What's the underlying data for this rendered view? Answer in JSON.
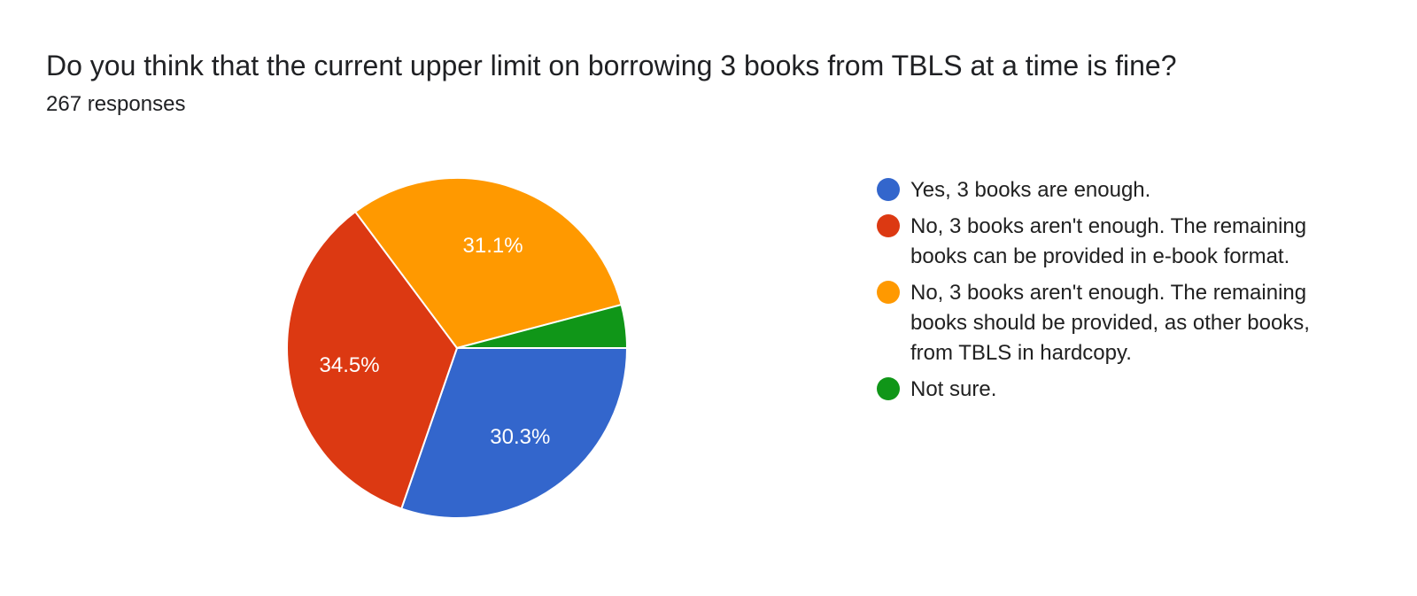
{
  "header": {
    "title": "Do you think that the current upper limit on borrowing 3 books from TBLS at a time is fine?",
    "responses": "267 responses"
  },
  "chart_data": {
    "type": "pie",
    "title": "Do you think that the current upper limit on borrowing 3 books from TBLS at a time is fine?",
    "legend_position": "right",
    "slices": [
      {
        "label": "Yes, 3 books are enough.",
        "value": 30.3,
        "display": "30.3%",
        "color": "#3366cc"
      },
      {
        "label": "No, 3 books aren't enough. The remaining books can be provided in e-book format.",
        "value": 34.5,
        "display": "34.5%",
        "color": "#dc3912"
      },
      {
        "label": "No, 3 books aren't enough. The remaining books should be provided, as other books, from TBLS in hardcopy.",
        "value": 31.1,
        "display": "31.1%",
        "color": "#ff9900"
      },
      {
        "label": "Not sure.",
        "value": 4.1,
        "display": "",
        "color": "#109618"
      }
    ]
  }
}
